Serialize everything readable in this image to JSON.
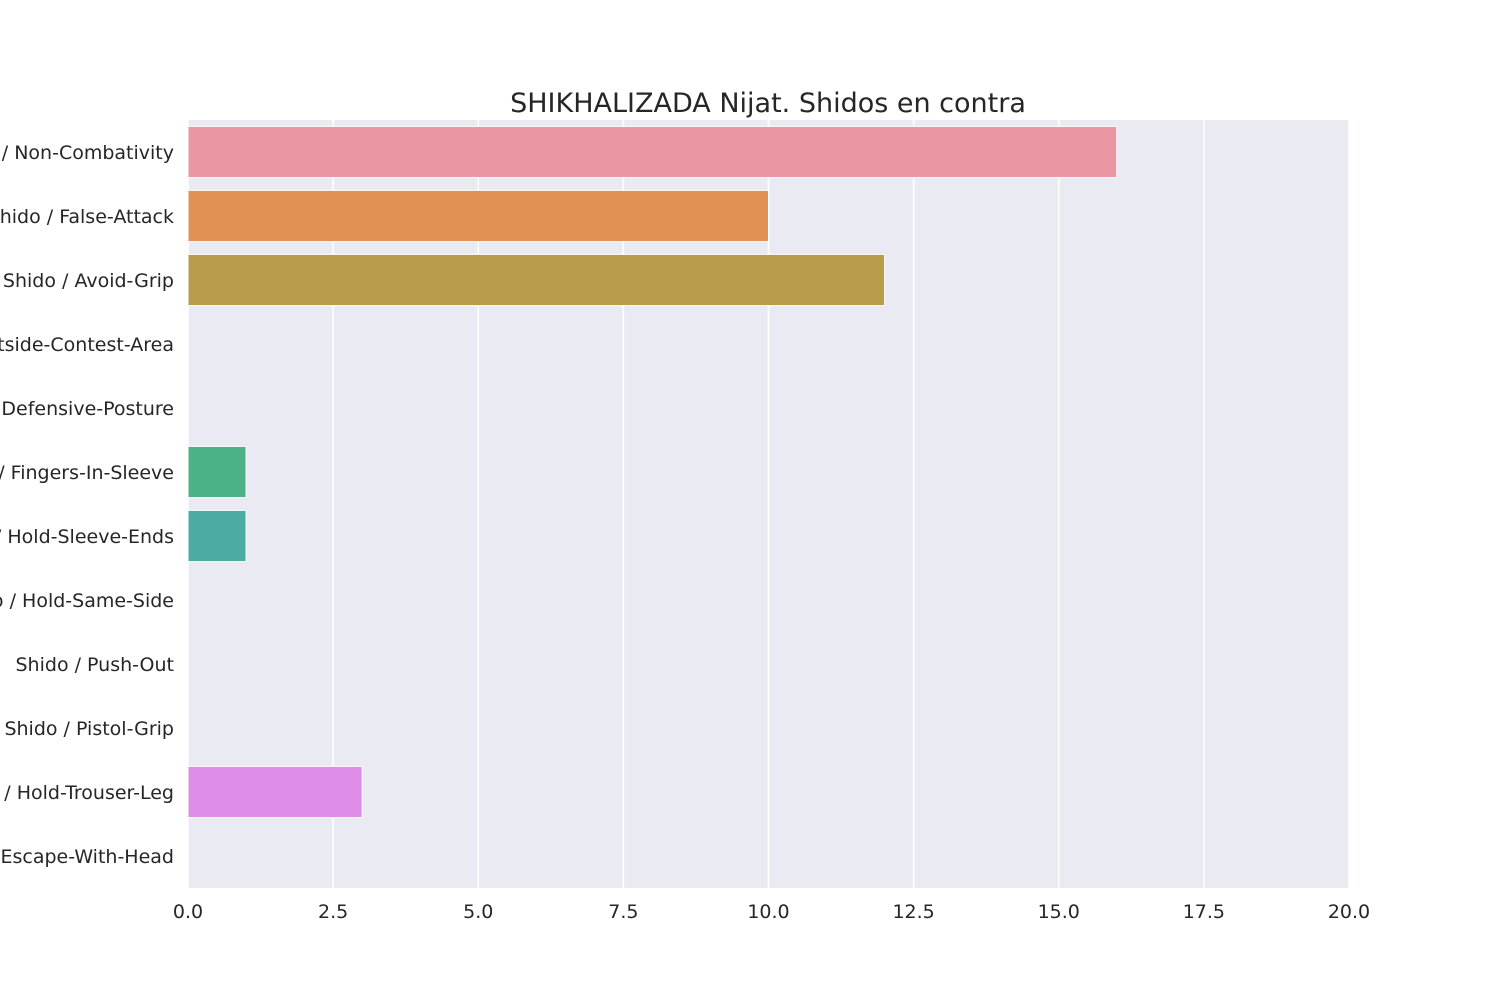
{
  "chart_data": {
    "type": "bar",
    "orientation": "horizontal",
    "title": "SHIKHALIZADA Nijat. Shidos en contra",
    "xlabel": "",
    "ylabel": "",
    "xlim": [
      0,
      20
    ],
    "x_ticks": [
      0,
      2.5,
      5,
      7.5,
      10,
      12.5,
      15,
      17.5,
      20
    ],
    "x_tick_labels": [
      "0.0",
      "2.5",
      "5.0",
      "7.5",
      "10.0",
      "12.5",
      "15.0",
      "17.5",
      "20.0"
    ],
    "grid": true,
    "legend": "none",
    "background_color": "#eaeaf2",
    "grid_color": "#ffffff",
    "categories": [
      "Shido / Non-Combativity",
      "Shido / False-Attack",
      "Shido / Avoid-Grip",
      "Shido / Outside-Contest-Area",
      "Shido / Defensive-Posture",
      "Shido / Fingers-In-Sleeve",
      "Shido / Hold-Sleeve-Ends",
      "Shido / Hold-Same-Side",
      "Shido / Push-Out",
      "Shido / Pistol-Grip",
      "Shido / Hold-Trouser-Leg",
      "Shido / Escape-With-Head"
    ],
    "values": [
      16,
      10,
      12,
      0,
      0,
      1,
      1,
      0,
      0,
      0,
      3,
      0
    ],
    "colors": [
      "#ea96a3",
      "#e19153",
      "#b89c49",
      "#8fa84a",
      "#4aad5f",
      "#4bb287",
      "#4caca3",
      "#4ea7b8",
      "#5b9fd6",
      "#a89cf5",
      "#df8ee8",
      "#e994c7"
    ]
  }
}
